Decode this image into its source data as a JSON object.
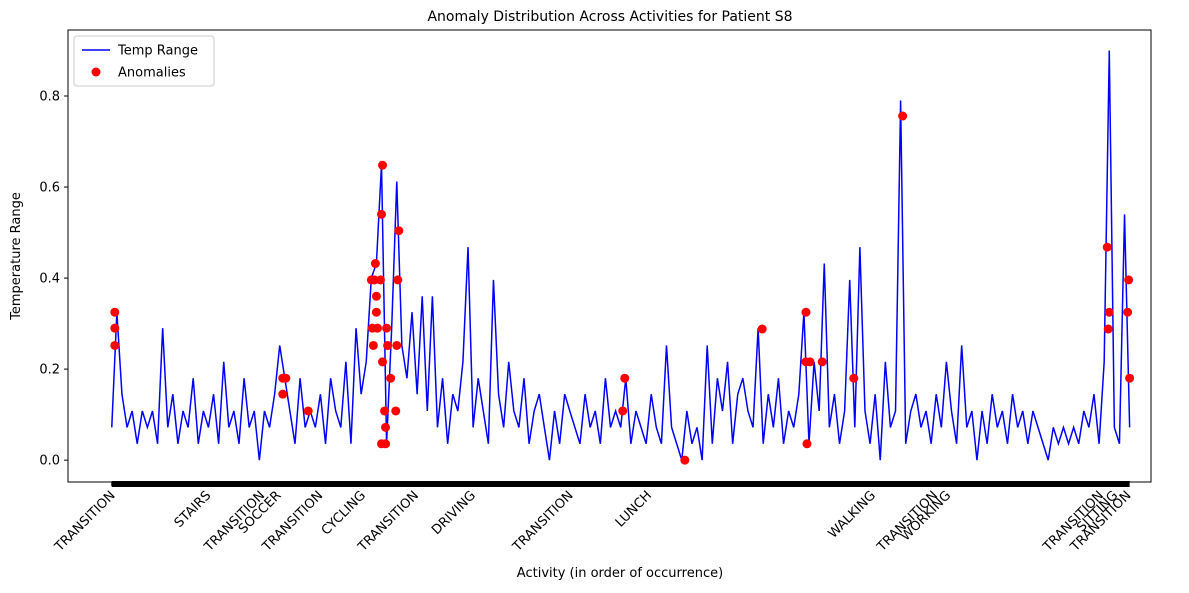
{
  "chart_data": {
    "type": "line",
    "title": "Anomaly Distribution Across Activities for Patient S8",
    "x_label": "Activity (in order of occurrence)",
    "y_label": "Temperature Range",
    "xlim": [
      -43,
      1021
    ],
    "ylim": [
      -0.048,
      0.945
    ],
    "yticks": [
      {
        "value": 0,
        "label": "0.0"
      },
      0.2,
      0.4,
      0.6,
      0.8
    ],
    "xticks": [
      {
        "value": 0,
        "label": "TRANSITION"
      },
      {
        "value": 94,
        "label": "STAIRS"
      },
      {
        "value": 147,
        "label": "TRANSITION"
      },
      {
        "value": 163,
        "label": "SOCCER"
      },
      {
        "value": 204,
        "label": "TRANSITION"
      },
      {
        "value": 246,
        "label": "CYCLING"
      },
      {
        "value": 298,
        "label": "TRANSITION"
      },
      {
        "value": 354,
        "label": "DRIVING"
      },
      {
        "value": 450,
        "label": "TRANSITION"
      },
      {
        "value": 527,
        "label": "LUNCH"
      },
      {
        "value": 747,
        "label": "WALKING"
      },
      {
        "value": 808,
        "label": "TRANSITION"
      },
      {
        "value": 821,
        "label": "WORKING"
      },
      {
        "value": 971,
        "label": "TRANSITION"
      },
      {
        "value": 985,
        "label": "SITTING"
      },
      {
        "value": 998,
        "label": "TRANSITION"
      }
    ],
    "legend": "upper left",
    "series": [
      {
        "name": "Temp Range",
        "type": "line",
        "color": "#0000ff",
        "x": [
          0,
          5,
          10,
          15,
          20,
          25,
          30,
          35,
          40,
          45,
          50,
          55,
          60,
          65,
          70,
          75,
          80,
          85,
          90,
          95,
          100,
          105,
          110,
          115,
          120,
          125,
          130,
          135,
          140,
          145,
          150,
          155,
          160,
          165,
          170,
          175,
          180,
          185,
          190,
          195,
          200,
          205,
          210,
          215,
          220,
          225,
          230,
          235,
          240,
          245,
          250,
          255,
          260,
          265,
          270,
          275,
          280,
          285,
          290,
          295,
          300,
          305,
          310,
          315,
          320,
          325,
          330,
          335,
          340,
          345,
          350,
          355,
          360,
          365,
          370,
          375,
          380,
          385,
          390,
          395,
          400,
          405,
          410,
          415,
          420,
          425,
          430,
          435,
          440,
          445,
          450,
          455,
          460,
          465,
          470,
          475,
          480,
          485,
          490,
          495,
          500,
          505,
          510,
          515,
          520,
          525,
          530,
          535,
          540,
          545,
          550,
          555,
          560,
          565,
          570,
          575,
          580,
          585,
          590,
          595,
          600,
          605,
          610,
          615,
          620,
          625,
          630,
          635,
          640,
          645,
          650,
          655,
          660,
          665,
          670,
          675,
          680,
          685,
          690,
          695,
          700,
          705,
          710,
          715,
          720,
          725,
          730,
          735,
          740,
          745,
          750,
          755,
          760,
          765,
          770,
          775,
          780,
          785,
          790,
          795,
          800,
          805,
          810,
          815,
          820,
          825,
          830,
          835,
          840,
          845,
          850,
          855,
          860,
          865,
          870,
          875,
          880,
          885,
          890,
          895,
          900,
          905,
          910,
          915,
          920,
          925,
          930,
          935,
          940,
          945,
          950,
          955,
          960,
          965,
          970,
          975,
          980,
          985,
          990,
          995,
          1000
        ],
        "values": [
          0.072,
          0.325,
          0.145,
          0.072,
          0.108,
          0.036,
          0.108,
          0.072,
          0.108,
          0.036,
          0.29,
          0.072,
          0.145,
          0.036,
          0.108,
          0.072,
          0.18,
          0.036,
          0.108,
          0.072,
          0.145,
          0.036,
          0.216,
          0.072,
          0.108,
          0.036,
          0.18,
          0.072,
          0.108,
          0.0,
          0.108,
          0.072,
          0.145,
          0.252,
          0.18,
          0.108,
          0.036,
          0.18,
          0.072,
          0.108,
          0.072,
          0.145,
          0.036,
          0.18,
          0.108,
          0.072,
          0.216,
          0.036,
          0.29,
          0.145,
          0.216,
          0.4,
          0.432,
          0.65,
          0.036,
          0.29,
          0.612,
          0.252,
          0.18,
          0.325,
          0.145,
          0.36,
          0.108,
          0.36,
          0.072,
          0.18,
          0.036,
          0.145,
          0.108,
          0.216,
          0.468,
          0.072,
          0.18,
          0.108,
          0.036,
          0.396,
          0.145,
          0.072,
          0.216,
          0.108,
          0.072,
          0.18,
          0.036,
          0.108,
          0.145,
          0.072,
          0.0,
          0.108,
          0.036,
          0.145,
          0.108,
          0.072,
          0.036,
          0.145,
          0.072,
          0.108,
          0.036,
          0.18,
          0.072,
          0.108,
          0.072,
          0.18,
          0.036,
          0.108,
          0.072,
          0.036,
          0.145,
          0.072,
          0.036,
          0.252,
          0.072,
          0.036,
          0.0,
          0.108,
          0.036,
          0.072,
          0.0,
          0.252,
          0.036,
          0.18,
          0.108,
          0.216,
          0.036,
          0.145,
          0.18,
          0.108,
          0.072,
          0.29,
          0.036,
          0.145,
          0.072,
          0.18,
          0.036,
          0.108,
          0.072,
          0.145,
          0.325,
          0.036,
          0.216,
          0.108,
          0.432,
          0.072,
          0.145,
          0.036,
          0.108,
          0.396,
          0.072,
          0.468,
          0.108,
          0.036,
          0.145,
          0.0,
          0.216,
          0.072,
          0.108,
          0.79,
          0.036,
          0.108,
          0.145,
          0.072,
          0.108,
          0.036,
          0.145,
          0.072,
          0.216,
          0.108,
          0.036,
          0.252,
          0.072,
          0.108,
          0.0,
          0.108,
          0.036,
          0.145,
          0.072,
          0.108,
          0.036,
          0.145,
          0.072,
          0.108,
          0.036,
          0.108,
          0.072,
          0.036,
          0.0,
          0.072,
          0.036,
          0.072,
          0.036,
          0.072,
          0.036,
          0.108,
          0.072,
          0.145,
          0.036,
          0.216,
          0.9,
          0.072,
          0.036,
          0.54,
          0.072
        ]
      },
      {
        "name": "Anomalies",
        "type": "scatter",
        "color": "#ff0000",
        "x": [
          3,
          3,
          3,
          168,
          171,
          168,
          193,
          255,
          259,
          258,
          260,
          260,
          256,
          257,
          261,
          264,
          265,
          266,
          266,
          265,
          269,
          268,
          269,
          270,
          271,
          274,
          280,
          281,
          282,
          279,
          502,
          504,
          563,
          639,
          682,
          682,
          683,
          686,
          698,
          729,
          777,
          978,
          980,
          979,
          999,
          998,
          1000
        ],
        "values": [
          0.325,
          0.29,
          0.252,
          0.18,
          0.18,
          0.145,
          0.108,
          0.396,
          0.432,
          0.396,
          0.36,
          0.325,
          0.29,
          0.252,
          0.29,
          0.396,
          0.54,
          0.648,
          0.216,
          0.036,
          0.036,
          0.108,
          0.072,
          0.29,
          0.252,
          0.18,
          0.252,
          0.396,
          0.504,
          0.108,
          0.108,
          0.18,
          0.0,
          0.288,
          0.325,
          0.216,
          0.036,
          0.216,
          0.216,
          0.18,
          0.756,
          0.468,
          0.325,
          0.288,
          0.396,
          0.325,
          0.18
        ]
      }
    ]
  }
}
